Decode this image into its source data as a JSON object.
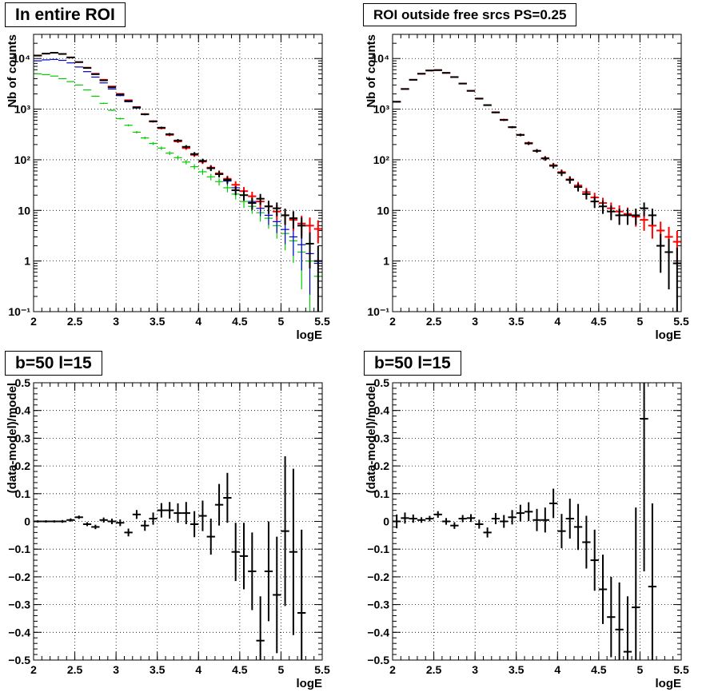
{
  "chart_data": [
    {
      "id": "top-left",
      "type": "scatter",
      "title": "In entire ROI",
      "xlabel": "logE",
      "ylabel": "Nb of counts",
      "xlim": [
        2,
        5.5
      ],
      "ylim": [
        0.1,
        30000
      ],
      "yscale": "log",
      "grid": true,
      "xticks": [
        "2",
        "2.5",
        "3",
        "3.5",
        "4",
        "4.5",
        "5",
        "5.5"
      ],
      "yticks": [
        "10⁻¹",
        "1",
        "10",
        "10²",
        "10³",
        "10⁴"
      ],
      "series": [
        {
          "color": "#00cc00",
          "x": [
            2.05,
            2.15,
            2.25,
            2.35,
            2.45,
            2.55,
            2.65,
            2.75,
            2.85,
            2.95,
            3.05,
            3.15,
            3.25,
            3.35,
            3.45,
            3.55,
            3.65,
            3.75,
            3.85,
            3.95,
            4.05,
            4.15,
            4.25,
            4.35,
            4.45,
            4.55,
            4.65,
            4.75,
            4.85,
            4.95,
            5.05,
            5.15,
            5.25,
            5.35,
            5.45
          ],
          "y": [
            5000,
            4800,
            4500,
            4000,
            3500,
            3000,
            2400,
            1800,
            1300,
            950,
            650,
            480,
            350,
            270,
            210,
            170,
            135,
            110,
            90,
            73,
            58,
            46,
            37,
            28,
            21,
            15,
            12,
            9,
            7,
            5,
            3.5,
            2.5,
            1.5,
            1.0,
            0.5
          ]
        },
        {
          "color": "#0000cc",
          "x": [
            2.05,
            2.15,
            2.25,
            2.35,
            2.45,
            2.55,
            2.65,
            2.75,
            2.85,
            2.95,
            3.05,
            3.15,
            3.25,
            3.35,
            3.45,
            3.55,
            3.65,
            3.75,
            3.85,
            3.95,
            4.05,
            4.15,
            4.25,
            4.35,
            4.45,
            4.55,
            4.65,
            4.75,
            4.85,
            4.95,
            5.05,
            5.15,
            5.25,
            5.35,
            5.45
          ],
          "y": [
            9000,
            9400,
            9600,
            9200,
            8200,
            6800,
            5500,
            4300,
            3300,
            2500,
            1850,
            1400,
            1050,
            780,
            580,
            430,
            320,
            240,
            180,
            130,
            95,
            70,
            52,
            38,
            28,
            20,
            15,
            11,
            8,
            6,
            4.2,
            3,
            2.1,
            1.4,
            0.9
          ]
        },
        {
          "color": "#ff0000",
          "x": [
            2.05,
            2.15,
            2.25,
            2.35,
            2.45,
            2.55,
            2.65,
            2.75,
            2.85,
            2.95,
            3.05,
            3.15,
            3.25,
            3.35,
            3.45,
            3.55,
            3.65,
            3.75,
            3.85,
            3.95,
            4.05,
            4.15,
            4.25,
            4.35,
            4.45,
            4.55,
            4.65,
            4.75,
            4.85,
            4.95,
            5.05,
            5.15,
            5.25,
            5.35,
            5.45
          ],
          "y": [
            11500,
            12500,
            13000,
            12300,
            10500,
            8500,
            6600,
            5000,
            3800,
            2800,
            2000,
            1500,
            1100,
            800,
            580,
            420,
            310,
            230,
            170,
            125,
            92,
            70,
            54,
            42,
            32,
            24,
            19,
            15,
            12,
            9.5,
            8,
            6.5,
            5.5,
            5,
            4.3
          ]
        },
        {
          "color": "#000000",
          "x": [
            2.05,
            2.15,
            2.25,
            2.35,
            2.45,
            2.55,
            2.65,
            2.75,
            2.85,
            2.95,
            3.05,
            3.15,
            3.25,
            3.35,
            3.45,
            3.55,
            3.65,
            3.75,
            3.85,
            3.95,
            4.05,
            4.15,
            4.25,
            4.35,
            4.45,
            4.55,
            4.65,
            4.75,
            4.85,
            4.95,
            5.05,
            5.15,
            5.25,
            5.35,
            5.45
          ],
          "y": [
            11400,
            12500,
            13000,
            12300,
            10500,
            8500,
            6500,
            4900,
            3700,
            2700,
            1950,
            1450,
            1080,
            790,
            570,
            430,
            320,
            240,
            180,
            130,
            95,
            68,
            52,
            40,
            25,
            20,
            14,
            17,
            12,
            11,
            8,
            7,
            5,
            2.2,
            1.0
          ]
        }
      ]
    },
    {
      "id": "top-right",
      "type": "scatter",
      "title": "ROI outside free srcs PS=0.25",
      "xlabel": "logE",
      "ylabel": "Nb of counts",
      "xlim": [
        2,
        5.5
      ],
      "ylim": [
        0.1,
        30000
      ],
      "yscale": "log",
      "grid": true,
      "xticks": [
        "2",
        "2.5",
        "3",
        "3.5",
        "4",
        "4.5",
        "5",
        "5.5"
      ],
      "yticks": [
        "10⁻¹",
        "1",
        "10",
        "10²",
        "10³",
        "10⁴"
      ],
      "series": [
        {
          "color": "#ff0000",
          "x": [
            2.05,
            2.15,
            2.25,
            2.35,
            2.45,
            2.55,
            2.65,
            2.75,
            2.85,
            2.95,
            3.05,
            3.15,
            3.25,
            3.35,
            3.45,
            3.55,
            3.65,
            3.75,
            3.85,
            3.95,
            4.05,
            4.15,
            4.25,
            4.35,
            4.45,
            4.55,
            4.65,
            4.75,
            4.85,
            4.95,
            5.05,
            5.15,
            5.25,
            5.35,
            5.45
          ],
          "y": [
            1400,
            2500,
            3800,
            5000,
            5800,
            5900,
            5200,
            4300,
            3200,
            2300,
            1620,
            1200,
            870,
            620,
            440,
            310,
            215,
            150,
            108,
            78,
            57,
            41,
            31,
            23,
            18,
            14,
            11,
            9.5,
            8.5,
            7.5,
            6.5,
            5,
            4,
            3,
            2.4
          ]
        },
        {
          "color": "#000000",
          "x": [
            2.05,
            2.15,
            2.25,
            2.35,
            2.45,
            2.55,
            2.65,
            2.75,
            2.85,
            2.95,
            3.05,
            3.15,
            3.25,
            3.35,
            3.45,
            3.55,
            3.65,
            3.75,
            3.85,
            3.95,
            4.05,
            4.15,
            4.25,
            4.35,
            4.45,
            4.55,
            4.65,
            4.75,
            4.85,
            4.95,
            5.05,
            5.15,
            5.25,
            5.35,
            5.45
          ],
          "y": [
            1400,
            2500,
            3800,
            5000,
            5800,
            5900,
            5200,
            4300,
            3200,
            2300,
            1610,
            1200,
            860,
            610,
            440,
            310,
            210,
            150,
            106,
            76,
            55,
            40,
            29,
            21,
            15,
            12,
            9.5,
            8,
            8,
            8,
            11,
            8,
            2,
            1.5,
            0.9
          ]
        }
      ]
    },
    {
      "id": "bottom-left",
      "type": "scatter",
      "title": "b=50 l=15",
      "xlabel": "logE",
      "ylabel": "(data-model)/model",
      "xlim": [
        2,
        5.5
      ],
      "ylim": [
        -0.5,
        0.5
      ],
      "grid": true,
      "xticks": [
        "2",
        "2.5",
        "3",
        "3.5",
        "4",
        "4.5",
        "5",
        "5.5"
      ],
      "yticks": [
        "−0.5",
        "−0.4",
        "−0.3",
        "−0.2",
        "−0.1",
        "0",
        "0.1",
        "0.2",
        "0.3",
        "0.4",
        "0.5"
      ],
      "series": [
        {
          "color": "#000000",
          "x": [
            2.05,
            2.15,
            2.25,
            2.35,
            2.45,
            2.55,
            2.65,
            2.75,
            2.85,
            2.95,
            3.05,
            3.15,
            3.25,
            3.35,
            3.45,
            3.55,
            3.65,
            3.75,
            3.85,
            3.95,
            4.05,
            4.15,
            4.25,
            4.35,
            4.45,
            4.55,
            4.65,
            4.75,
            4.85,
            4.95,
            5.05,
            5.15,
            5.25
          ],
          "y": [
            0.0,
            0.0,
            0.0,
            0.0,
            0.005,
            0.015,
            -0.01,
            -0.02,
            0.005,
            0.0,
            -0.005,
            -0.04,
            0.025,
            -0.015,
            0.01,
            0.04,
            0.04,
            0.03,
            0.03,
            -0.01,
            0.02,
            -0.055,
            0.06,
            0.085,
            -0.11,
            -0.125,
            -0.18,
            -0.43,
            -0.18,
            -0.265,
            -0.035,
            -0.11,
            -0.33
          ],
          "err": [
            0.004,
            0.004,
            0.004,
            0.005,
            0.006,
            0.006,
            0.007,
            0.008,
            0.009,
            0.01,
            0.012,
            0.014,
            0.016,
            0.019,
            0.022,
            0.026,
            0.03,
            0.035,
            0.04,
            0.047,
            0.055,
            0.065,
            0.075,
            0.09,
            0.105,
            0.12,
            0.14,
            0.16,
            0.18,
            0.21,
            0.27,
            0.3,
            0.3
          ]
        }
      ]
    },
    {
      "id": "bottom-right",
      "type": "scatter",
      "title": "b=50 l=15",
      "xlabel": "logE",
      "ylabel": "(data-model)/model",
      "xlim": [
        2,
        5.5
      ],
      "ylim": [
        -0.5,
        0.5
      ],
      "grid": true,
      "xticks": [
        "2",
        "2.5",
        "3",
        "3.5",
        "4",
        "4.5",
        "5",
        "5.5"
      ],
      "yticks": [
        "−0.5",
        "−0.4",
        "−0.3",
        "−0.2",
        "−0.1",
        "0",
        "0.1",
        "0.2",
        "0.3",
        "0.4",
        "0.5"
      ],
      "series": [
        {
          "color": "#000000",
          "x": [
            2.05,
            2.15,
            2.25,
            2.35,
            2.45,
            2.55,
            2.65,
            2.75,
            2.85,
            2.95,
            3.05,
            3.15,
            3.25,
            3.35,
            3.45,
            3.55,
            3.65,
            3.75,
            3.85,
            3.95,
            4.05,
            4.15,
            4.25,
            4.35,
            4.45,
            4.55,
            4.65,
            4.75,
            4.85,
            4.95,
            5.05,
            5.15
          ],
          "y": [
            0.0,
            0.012,
            0.01,
            0.005,
            0.01,
            0.025,
            0.0,
            -0.015,
            0.01,
            0.012,
            -0.01,
            -0.04,
            0.01,
            0.0,
            0.015,
            0.03,
            0.035,
            0.005,
            0.005,
            0.065,
            -0.035,
            0.01,
            -0.02,
            -0.075,
            -0.14,
            -0.245,
            -0.345,
            -0.39,
            -0.47,
            -0.31,
            0.37,
            -0.235
          ],
          "err": [
            0.025,
            0.02,
            0.015,
            0.01,
            0.01,
            0.012,
            0.012,
            0.012,
            0.013,
            0.014,
            0.016,
            0.018,
            0.02,
            0.023,
            0.026,
            0.03,
            0.034,
            0.04,
            0.045,
            0.053,
            0.062,
            0.072,
            0.083,
            0.095,
            0.11,
            0.125,
            0.145,
            0.17,
            0.2,
            0.36,
            0.55,
            0.3
          ]
        }
      ]
    }
  ]
}
